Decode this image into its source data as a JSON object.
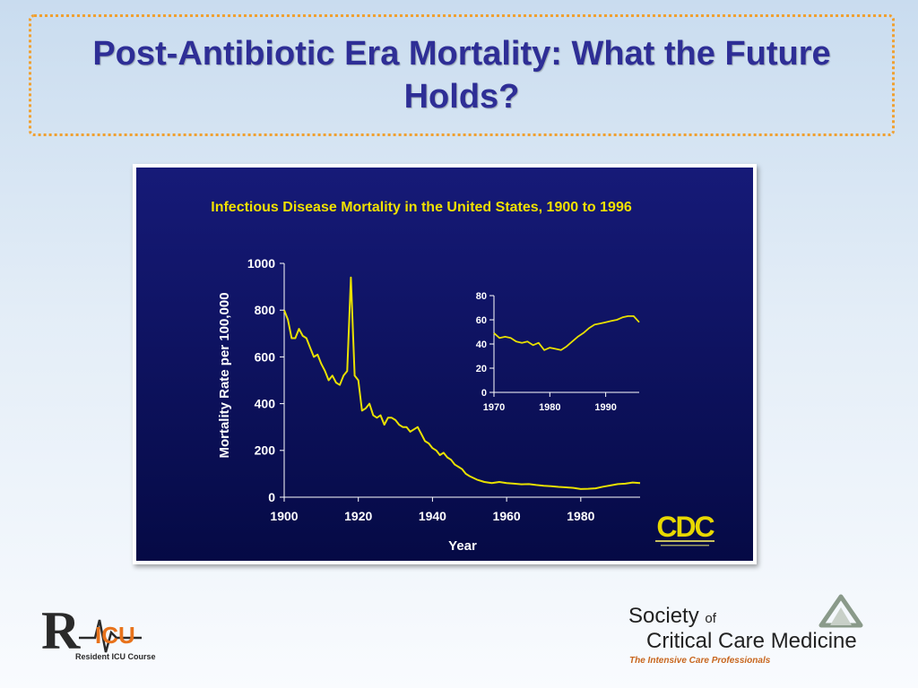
{
  "slide": {
    "title": "Post-Antibiotic Era Mortality: What the Future Holds?"
  },
  "chart_data": [
    {
      "type": "line",
      "title": "Infectious Disease Mortality in the United States, 1900 to 1996",
      "xlabel": "Year",
      "ylabel": "Mortality Rate per 100,000",
      "xlim": [
        1900,
        1996
      ],
      "ylim": [
        0,
        1000
      ],
      "xticks": [
        1900,
        1920,
        1940,
        1960,
        1980
      ],
      "yticks": [
        0,
        200,
        400,
        600,
        800,
        1000
      ],
      "series": [
        {
          "color": "#e8e000",
          "x": [
            1900,
            1901,
            1902,
            1903,
            1904,
            1905,
            1906,
            1907,
            1908,
            1909,
            1910,
            1911,
            1912,
            1913,
            1914,
            1915,
            1916,
            1917,
            1918,
            1919,
            1920,
            1921,
            1922,
            1923,
            1924,
            1925,
            1926,
            1927,
            1928,
            1929,
            1930,
            1931,
            1932,
            1933,
            1934,
            1935,
            1936,
            1937,
            1938,
            1939,
            1940,
            1941,
            1942,
            1943,
            1944,
            1945,
            1946,
            1947,
            1948,
            1949,
            1950,
            1952,
            1954,
            1956,
            1958,
            1960,
            1962,
            1964,
            1966,
            1968,
            1970,
            1972,
            1974,
            1976,
            1978,
            1980,
            1982,
            1984,
            1986,
            1988,
            1990,
            1992,
            1994,
            1996
          ],
          "y": [
            800,
            760,
            680,
            680,
            720,
            690,
            680,
            640,
            600,
            610,
            570,
            540,
            500,
            520,
            490,
            480,
            520,
            540,
            940,
            520,
            500,
            370,
            380,
            400,
            350,
            340,
            350,
            310,
            340,
            340,
            330,
            310,
            300,
            300,
            280,
            290,
            300,
            270,
            240,
            230,
            210,
            200,
            180,
            190,
            170,
            160,
            140,
            130,
            120,
            100,
            90,
            75,
            65,
            60,
            65,
            60,
            58,
            55,
            56,
            52,
            49,
            47,
            44,
            42,
            40,
            35,
            36,
            38,
            45,
            50,
            56,
            58,
            63,
            60
          ]
        }
      ],
      "logo_text": "CDC"
    },
    {
      "type": "line",
      "title": "",
      "xlim": [
        1970,
        1996
      ],
      "ylim": [
        0,
        80
      ],
      "xticks": [
        1970,
        1980,
        1990
      ],
      "yticks": [
        0,
        20,
        40,
        60,
        80
      ],
      "series": [
        {
          "color": "#e8e000",
          "x": [
            1970,
            1971,
            1972,
            1973,
            1974,
            1975,
            1976,
            1977,
            1978,
            1979,
            1980,
            1981,
            1982,
            1983,
            1984,
            1985,
            1986,
            1987,
            1988,
            1989,
            1990,
            1991,
            1992,
            1993,
            1994,
            1995,
            1996
          ],
          "y": [
            49,
            45,
            46,
            45,
            42,
            41,
            42,
            39,
            41,
            35,
            37,
            36,
            35,
            38,
            42,
            46,
            49,
            53,
            56,
            57,
            58,
            59,
            60,
            62,
            63,
            63,
            58
          ]
        }
      ]
    }
  ],
  "logos": {
    "ricu": {
      "mark": "R",
      "letters": "ICU",
      "caption": "Resident ICU Course"
    },
    "sccm": {
      "name_line1": "Society",
      "name_of": "of",
      "name_line2": "Critical Care Medicine",
      "tagline": "The Intensive Care Professionals"
    }
  }
}
